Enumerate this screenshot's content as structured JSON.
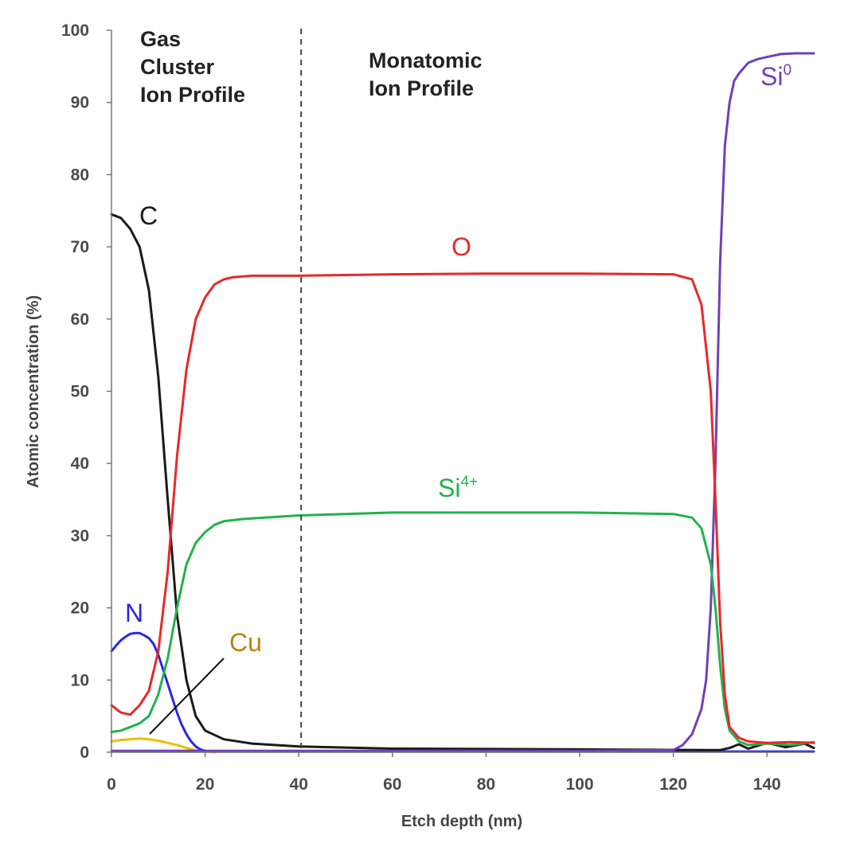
{
  "chart_data": {
    "type": "line",
    "xlabel": "Etch depth (nm)",
    "ylabel": "Atomic concentration (%)",
    "xlim": [
      0,
      150
    ],
    "ylim": [
      0,
      100
    ],
    "xticks": [
      0,
      20,
      40,
      60,
      80,
      100,
      120,
      140
    ],
    "yticks": [
      0,
      10,
      20,
      30,
      40,
      50,
      60,
      70,
      80,
      90,
      100
    ],
    "grid": false,
    "divider": {
      "x": 40.5,
      "style": "dashed"
    },
    "regions": [
      {
        "name": "gas-cluster",
        "lines": [
          "Gas",
          "Cluster",
          "Ion Profile"
        ]
      },
      {
        "name": "monatomic",
        "lines": [
          "Monatomic",
          "Ion Profile"
        ]
      }
    ],
    "series": [
      {
        "name": "C",
        "label": "C",
        "color": "#1a1a1a",
        "x": [
          0,
          2,
          4,
          6,
          8,
          10,
          12,
          14,
          16,
          18,
          20,
          24,
          30,
          40,
          60,
          100,
          130,
          132,
          134,
          136,
          140,
          144,
          148,
          150
        ],
        "y": [
          74.5,
          74,
          72.5,
          70,
          64,
          52,
          35,
          19,
          10,
          5,
          3,
          1.8,
          1.2,
          0.8,
          0.5,
          0.4,
          0.3,
          0.6,
          1.1,
          0.5,
          1.3,
          0.7,
          1.2,
          0.6
        ]
      },
      {
        "name": "O",
        "label": "O",
        "color": "#e8282a",
        "x": [
          0,
          2,
          4,
          6,
          8,
          10,
          12,
          14,
          16,
          18,
          20,
          22,
          24,
          26,
          30,
          40,
          60,
          80,
          100,
          120,
          124,
          126,
          128,
          129,
          130,
          131,
          132,
          134,
          136,
          140,
          145,
          150
        ],
        "y": [
          6.5,
          5.5,
          5.2,
          6.5,
          8.5,
          14,
          25,
          41,
          53,
          60,
          63,
          64.8,
          65.5,
          65.8,
          66,
          66,
          66.2,
          66.3,
          66.3,
          66.2,
          65.5,
          62,
          50,
          35,
          18,
          8,
          3.5,
          2,
          1.5,
          1.3,
          1.4,
          1.3
        ]
      },
      {
        "name": "Si4+",
        "label": "Si",
        "label_sup": "4+",
        "color": "#22b24c",
        "x": [
          0,
          2,
          4,
          6,
          8,
          10,
          12,
          14,
          16,
          18,
          20,
          22,
          24,
          28,
          40,
          60,
          80,
          100,
          120,
          124,
          126,
          128,
          129,
          130,
          131,
          132,
          134,
          136,
          140,
          145,
          150
        ],
        "y": [
          2.8,
          3,
          3.5,
          4,
          5,
          8,
          13,
          20,
          26,
          29,
          30.5,
          31.5,
          32,
          32.3,
          32.8,
          33.2,
          33.2,
          33.2,
          33,
          32.5,
          31,
          26,
          20,
          12,
          6,
          3,
          1.5,
          1,
          1.2,
          1,
          1.4
        ]
      },
      {
        "name": "Si0",
        "label": "Si",
        "label_sup": "0",
        "color": "#7040b8",
        "x": [
          0,
          60,
          100,
          120,
          122,
          124,
          126,
          127,
          128,
          129,
          130,
          131,
          132,
          133,
          134,
          136,
          138,
          140,
          143,
          146,
          150
        ],
        "y": [
          0.2,
          0.2,
          0.2,
          0.3,
          1,
          2.5,
          6,
          10,
          20,
          40,
          68,
          84,
          90,
          93,
          94,
          95.5,
          96,
          96.3,
          96.7,
          96.8,
          96.8
        ]
      },
      {
        "name": "N",
        "label": "N",
        "color": "#2828e0",
        "x": [
          0,
          1,
          2,
          3,
          4,
          5,
          6,
          7,
          8,
          9,
          10,
          11,
          12,
          13,
          14,
          15,
          16,
          17,
          18,
          19,
          20,
          22,
          30,
          60,
          100,
          150
        ],
        "y": [
          14,
          14.8,
          15.5,
          16,
          16.4,
          16.5,
          16.5,
          16.2,
          15.8,
          15,
          13.5,
          11.5,
          9.5,
          7.5,
          5.5,
          3.8,
          2.5,
          1.5,
          0.8,
          0.4,
          0.2,
          0.1,
          0.1,
          0.1,
          0.1,
          0.1
        ]
      },
      {
        "name": "Cu",
        "label": "Cu",
        "color": "#e8c000",
        "label_color": "#c08010",
        "x": [
          0,
          2,
          4,
          6,
          8,
          10,
          12,
          14,
          16,
          18,
          20,
          22
        ],
        "y": [
          1.5,
          1.7,
          1.8,
          1.9,
          1.8,
          1.6,
          1.3,
          1,
          0.6,
          0.3,
          0.1,
          0
        ]
      }
    ]
  }
}
